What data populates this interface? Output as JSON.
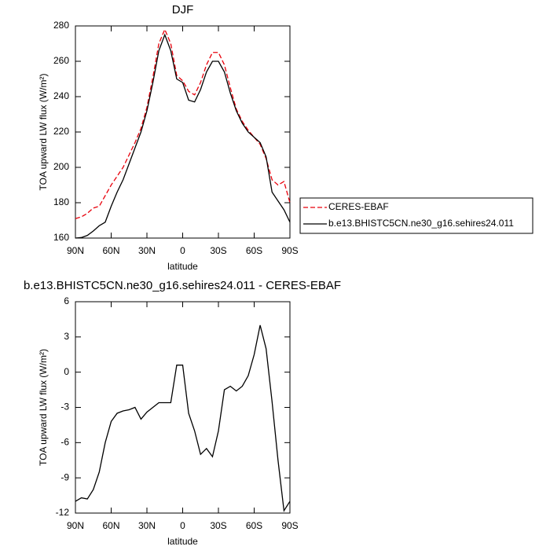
{
  "chart_data": [
    {
      "type": "line",
      "title": "DJF",
      "xlabel": "latitude",
      "ylabel": "TOA upward LW flux (W/m²)",
      "x": [
        90,
        85,
        80,
        75,
        70,
        65,
        60,
        55,
        50,
        45,
        40,
        35,
        30,
        25,
        20,
        15,
        10,
        5,
        0,
        -5,
        -10,
        -15,
        -20,
        -25,
        -30,
        -35,
        -40,
        -45,
        -50,
        -55,
        -60,
        -65,
        -70,
        -75,
        -80,
        -85,
        -90
      ],
      "series": [
        {
          "name": "CERES-EBAF",
          "color": "#e8000b",
          "dashed": true,
          "values": [
            171,
            172,
            174,
            177,
            178,
            184,
            190,
            195,
            200,
            207,
            214,
            222,
            234,
            251,
            270,
            278,
            270,
            252,
            249,
            243,
            241,
            248,
            258,
            265,
            265,
            258,
            245,
            233,
            226,
            221,
            217,
            213,
            205,
            193,
            190,
            192,
            180
          ]
        },
        {
          "name": "b.e13.BHISTC5CN.ne30_g16.sehires24.011",
          "color": "#000000",
          "dashed": false,
          "values": [
            160,
            160.3,
            161.5,
            164,
            167,
            169,
            178,
            186,
            193,
            202,
            211,
            220,
            232,
            248,
            266,
            275,
            266,
            250,
            248,
            238,
            237,
            244,
            254,
            260,
            260,
            254,
            242,
            232,
            225,
            220,
            217,
            214,
            206,
            186,
            181,
            176,
            169
          ]
        }
      ],
      "xlim": [
        90,
        -90
      ],
      "xticks": [
        {
          "value": 90,
          "label": "90N"
        },
        {
          "value": 60,
          "label": "60N"
        },
        {
          "value": 30,
          "label": "30N"
        },
        0,
        {
          "value": -30,
          "label": "30S"
        },
        {
          "value": -60,
          "label": "60S"
        },
        {
          "value": -90,
          "label": "90S"
        }
      ],
      "ylim": [
        160,
        280
      ],
      "yticks": [
        160,
        180,
        200,
        220,
        240,
        260,
        280
      ],
      "legend": "right"
    },
    {
      "type": "line",
      "title": "b.e13.BHISTC5CN.ne30_g16.sehires24.011 - CERES-EBAF",
      "xlabel": "latitude",
      "ylabel": "TOA upward LW flux (W/m²)",
      "x": [
        90,
        85,
        80,
        75,
        70,
        65,
        60,
        55,
        50,
        45,
        40,
        35,
        30,
        25,
        20,
        15,
        10,
        5,
        0,
        -5,
        -10,
        -15,
        -20,
        -25,
        -30,
        -35,
        -40,
        -45,
        -50,
        -55,
        -60,
        -65,
        -70,
        -75,
        -80,
        -85,
        -90
      ],
      "series": [
        {
          "color": "#000000",
          "dashed": false,
          "values": [
            -11,
            -10.7,
            -10.8,
            -10,
            -8.5,
            -6,
            -4.2,
            -3.5,
            -3.3,
            -3.2,
            -3,
            -4,
            -3.4,
            -3,
            -2.6,
            -2.6,
            -2.6,
            0.6,
            0.6,
            -3.5,
            -5,
            -7,
            -6.5,
            -7.2,
            -5,
            -1.5,
            -1.2,
            -1.6,
            -1.2,
            -0.3,
            1.5,
            4,
            2,
            -2.5,
            -7.5,
            -11.8,
            -11
          ]
        }
      ],
      "xlim": [
        90,
        -90
      ],
      "xticks": [
        {
          "value": 90,
          "label": "90N"
        },
        {
          "value": 60,
          "label": "60N"
        },
        {
          "value": 30,
          "label": "30N"
        },
        0,
        {
          "value": -30,
          "label": "30S"
        },
        {
          "value": -60,
          "label": "60S"
        },
        {
          "value": -90,
          "label": "90S"
        }
      ],
      "ylim": [
        -12,
        6
      ],
      "yticks": [
        -12,
        -9,
        -6,
        -3,
        0,
        3,
        6
      ]
    }
  ]
}
